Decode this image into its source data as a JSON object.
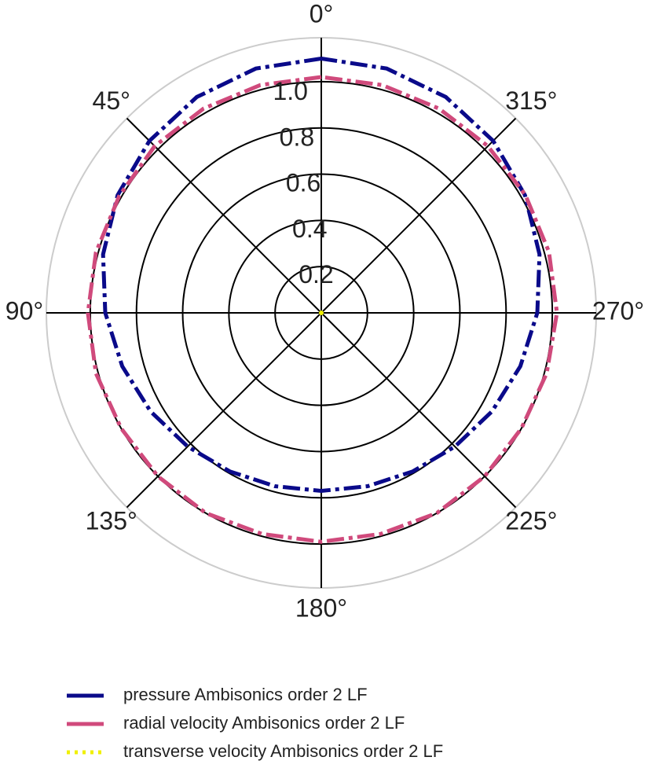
{
  "chart_data": {
    "type": "polar",
    "x": [
      0,
      15,
      30,
      45,
      60,
      75,
      90,
      105,
      120,
      135,
      150,
      165,
      180,
      195,
      210,
      225,
      240,
      255,
      270,
      285,
      300,
      315,
      330,
      345,
      360
    ],
    "series": [
      {
        "name": "pressure Ambisonics order 2 LF",
        "color": "#0a0a8a",
        "dash": "dashdot",
        "values": [
          1.1,
          1.094,
          1.078,
          1.052,
          1.018,
          0.978,
          0.935,
          0.892,
          0.853,
          0.818,
          0.792,
          0.776,
          0.77,
          0.776,
          0.792,
          0.818,
          0.853,
          0.892,
          0.935,
          0.978,
          1.018,
          1.052,
          1.078,
          1.094,
          1.1
        ]
      },
      {
        "name": "radial velocity Ambisonics order 2 LF",
        "color": "#d04a7c",
        "dash": "dashdot",
        "values": [
          1.02,
          1.02,
          1.02,
          1.02,
          1.01,
          1.01,
          1.01,
          1.01,
          1.0,
          1.0,
          1.0,
          0.99,
          0.99,
          0.99,
          1.0,
          1.0,
          1.0,
          1.01,
          1.02,
          1.02,
          1.02,
          1.02,
          1.02,
          1.02,
          1.02
        ]
      },
      {
        "name": "transverse velocity Ambisonics order 2 LF",
        "color": "#f0f000",
        "dash": "dotted",
        "values": [
          0,
          0,
          0,
          0,
          0,
          0,
          0,
          0,
          0,
          0,
          0,
          0,
          0,
          0,
          0,
          0,
          0,
          0,
          0,
          0,
          0,
          0,
          0,
          0,
          0
        ]
      }
    ],
    "xticks": [
      {
        "value": 0,
        "label": "0°"
      },
      {
        "value": 45,
        "label": "45°"
      },
      {
        "value": 90,
        "label": "90°"
      },
      {
        "value": 135,
        "label": "135°"
      },
      {
        "value": 180,
        "label": "180°"
      },
      {
        "value": 225,
        "label": "225°"
      },
      {
        "value": 270,
        "label": "270°"
      },
      {
        "value": 315,
        "label": "315°"
      }
    ],
    "ylim": [
      0,
      1.19
    ],
    "yticks": [
      0.2,
      0.4,
      0.6,
      0.8,
      {
        "value": 1,
        "label": "1.0"
      }
    ],
    "direction": "counterclockwise",
    "zero_location": "top",
    "grid": true,
    "legend": "bottom"
  }
}
